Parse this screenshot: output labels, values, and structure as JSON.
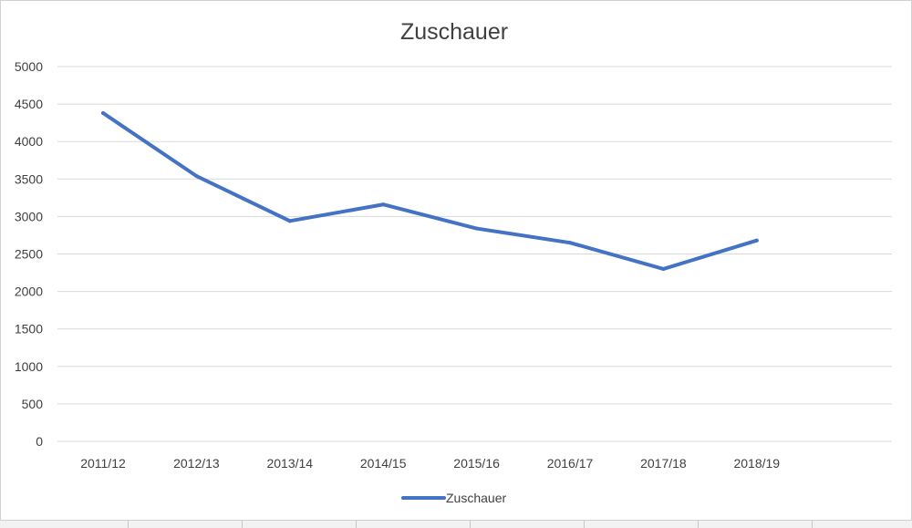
{
  "chart_data": {
    "type": "line",
    "title": "Zuschauer",
    "xlabel": "",
    "ylabel": "",
    "categories": [
      "2011/12",
      "2012/13",
      "2013/14",
      "2014/15",
      "2015/16",
      "2016/17",
      "2017/18",
      "2018/19"
    ],
    "series": [
      {
        "name": "Zuschauer",
        "color": "#4472c4",
        "values": [
          4380,
          3540,
          2940,
          3160,
          2840,
          2650,
          2300,
          2680
        ]
      }
    ],
    "ylim": [
      0,
      5000
    ],
    "yticks": [
      0,
      500,
      1000,
      1500,
      2000,
      2500,
      3000,
      3500,
      4000,
      4500,
      5000
    ],
    "grid": true,
    "legend_position": "bottom"
  }
}
